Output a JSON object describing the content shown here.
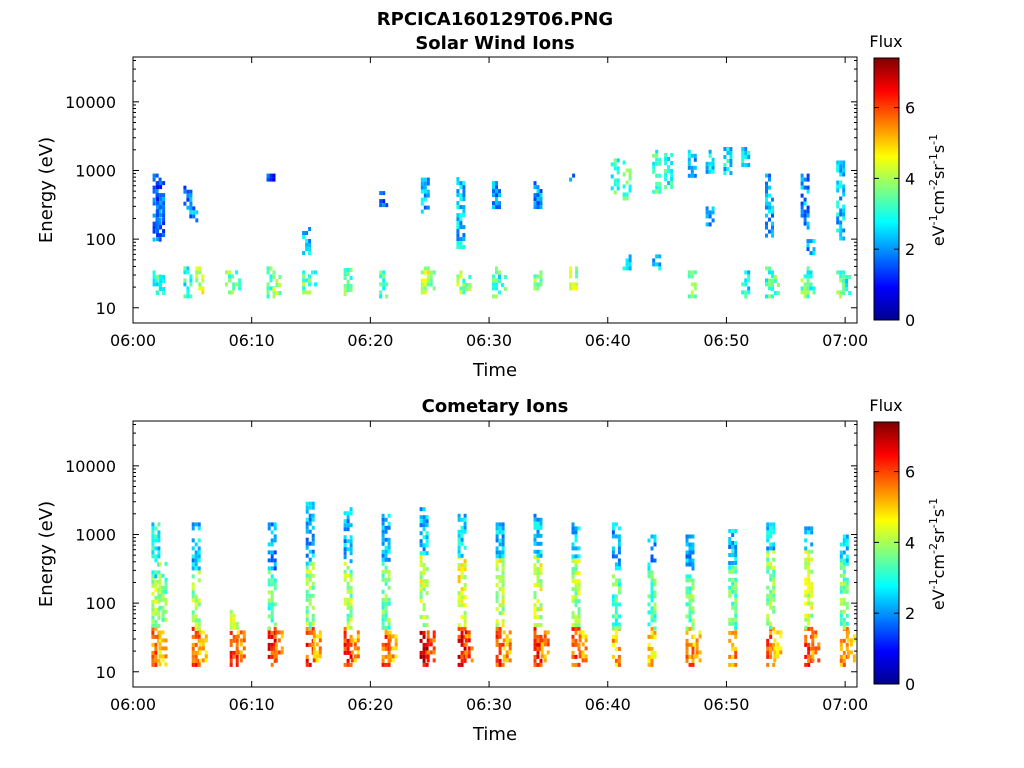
{
  "figure": {
    "title": "RPCICA160129T06.PNG"
  },
  "colorbar": {
    "label": "Flux",
    "unit_parts": [
      "eV",
      "-1",
      "cm",
      "-2",
      "sr",
      "-1",
      "s",
      "-1"
    ],
    "ticks": [
      "0",
      "2",
      "4",
      "6"
    ],
    "range": [
      0,
      7.4
    ],
    "colormap": "jet"
  },
  "chart_data": [
    {
      "type": "heatmap",
      "title": "Solar Wind Ions",
      "xlabel": "Time",
      "ylabel": "Energy (eV)",
      "x_ticks": [
        "06:00",
        "06:10",
        "06:20",
        "06:30",
        "06:40",
        "06:50",
        "07:00"
      ],
      "y_ticks": [
        "10",
        "100",
        "1000",
        "10000"
      ],
      "x_range_minutes": [
        0,
        61
      ],
      "y_scale": "log",
      "y_range": [
        6,
        45000
      ],
      "columns": [
        {
          "t": 1.9,
          "bands": [
            [
              16,
              35,
              2.9
            ],
            [
              90,
              900,
              1.8
            ]
          ]
        },
        {
          "t": 2.2,
          "bands": [
            [
              16,
              30,
              3.2
            ],
            [
              100,
              700,
              1.6
            ]
          ]
        },
        {
          "t": 4.5,
          "bands": [
            [
              14,
              40,
              3.0
            ],
            [
              300,
              600,
              1.8
            ]
          ]
        },
        {
          "t": 5.0,
          "bands": [
            [
              200,
              300,
              2.0
            ]
          ]
        },
        {
          "t": 5.5,
          "bands": [
            [
              16,
              40,
              4.2
            ]
          ]
        },
        {
          "t": 8.0,
          "bands": [
            [
              16,
              35,
              3.6
            ]
          ]
        },
        {
          "t": 8.6,
          "bands": [
            [
              18,
              35,
              3.4
            ]
          ]
        },
        {
          "t": 11.5,
          "bands": [
            [
              14,
              40,
              3.4
            ],
            [
              700,
              900,
              1.4
            ]
          ]
        },
        {
          "t": 12.0,
          "bands": [
            [
              16,
              30,
              4.0
            ]
          ]
        },
        {
          "t": 14.5,
          "bands": [
            [
              16,
              40,
              3.6
            ],
            [
              60,
              150,
              2.2
            ]
          ]
        },
        {
          "t": 15.0,
          "bands": [
            [
              18,
              35,
              3.2
            ]
          ]
        },
        {
          "t": 18.0,
          "bands": [
            [
              16,
              38,
              3.4
            ]
          ]
        },
        {
          "t": 21.0,
          "bands": [
            [
              14,
              35,
              3.2
            ],
            [
              300,
              500,
              1.8
            ]
          ]
        },
        {
          "t": 24.5,
          "bands": [
            [
              16,
              40,
              4.3
            ],
            [
              250,
              900,
              2.2
            ]
          ]
        },
        {
          "t": 25.0,
          "bands": [
            [
              18,
              35,
              3.8
            ]
          ]
        },
        {
          "t": 27.5,
          "bands": [
            [
              16,
              35,
              3.8
            ],
            [
              80,
              800,
              2.4
            ]
          ]
        },
        {
          "t": 28.0,
          "bands": [
            [
              18,
              30,
              3.5
            ]
          ]
        },
        {
          "t": 30.5,
          "bands": [
            [
              14,
              40,
              3.4
            ],
            [
              300,
              700,
              2.0
            ]
          ]
        },
        {
          "t": 31.0,
          "bands": [
            [
              16,
              30,
              3.1
            ]
          ]
        },
        {
          "t": 34.0,
          "bands": [
            [
              16,
              40,
              3.6
            ],
            [
              300,
              700,
              2.0
            ]
          ]
        },
        {
          "t": 37.0,
          "bands": [
            [
              18,
              40,
              4.0
            ],
            [
              700,
              900,
              1.8
            ]
          ]
        },
        {
          "t": 40.5,
          "bands": [
            [
              500,
              1500,
              3.2
            ]
          ]
        },
        {
          "t": 41.5,
          "bands": [
            [
              400,
              1400,
              3.4
            ],
            [
              40,
              60,
              2.4
            ]
          ]
        },
        {
          "t": 44.0,
          "bands": [
            [
              500,
              2000,
              3.3
            ],
            [
              40,
              60,
              2.4
            ]
          ]
        },
        {
          "t": 45.0,
          "bands": [
            [
              600,
              1800,
              2.9
            ]
          ]
        },
        {
          "t": 47.0,
          "bands": [
            [
              15,
              35,
              3.8
            ],
            [
              800,
              2000,
              2.4
            ]
          ]
        },
        {
          "t": 48.5,
          "bands": [
            [
              900,
              2000,
              2.5
            ],
            [
              160,
              300,
              2.0
            ]
          ]
        },
        {
          "t": 50.0,
          "bands": [
            [
              900,
              2200,
              2.6
            ]
          ]
        },
        {
          "t": 51.5,
          "bands": [
            [
              15,
              35,
              2.8
            ],
            [
              1200,
              2200,
              2.6
            ]
          ]
        },
        {
          "t": 53.5,
          "bands": [
            [
              14,
              40,
              3.1
            ],
            [
              120,
              900,
              2.2
            ]
          ]
        },
        {
          "t": 54.0,
          "bands": [
            [
              16,
              30,
              3.3
            ]
          ]
        },
        {
          "t": 56.5,
          "bands": [
            [
              14,
              40,
              3.6
            ],
            [
              150,
              900,
              2.0
            ]
          ]
        },
        {
          "t": 57.0,
          "bands": [
            [
              16,
              35,
              3.2
            ],
            [
              60,
              100,
              2.2
            ]
          ]
        },
        {
          "t": 59.5,
          "bands": [
            [
              14,
              35,
              3.4
            ],
            [
              100,
              1400,
              2.4
            ]
          ]
        },
        {
          "t": 60.0,
          "bands": [
            [
              16,
              30,
              3.0
            ]
          ]
        }
      ]
    },
    {
      "type": "heatmap",
      "title": "Cometary Ions",
      "xlabel": "Time",
      "ylabel": "Energy (eV)",
      "x_ticks": [
        "06:00",
        "06:10",
        "06:20",
        "06:30",
        "06:40",
        "06:50",
        "07:00"
      ],
      "y_ticks": [
        "10",
        "100",
        "1000",
        "10000"
      ],
      "x_range_minutes": [
        0,
        61
      ],
      "y_scale": "log",
      "y_range": [
        6,
        45000
      ],
      "columns": [
        {
          "t": 1.8,
          "bands": [
            [
              12,
              45,
              5.6
            ],
            [
              45,
              250,
              4.0
            ],
            [
              250,
              1500,
              2.8
            ]
          ]
        },
        {
          "t": 2.4,
          "bands": [
            [
              12,
              40,
              5.0
            ],
            [
              60,
              400,
              3.6
            ]
          ]
        },
        {
          "t": 5.2,
          "bands": [
            [
              12,
              45,
              5.8
            ],
            [
              45,
              300,
              3.8
            ],
            [
              300,
              1500,
              2.4
            ]
          ]
        },
        {
          "t": 5.8,
          "bands": [
            [
              14,
              40,
              5.2
            ]
          ]
        },
        {
          "t": 8.4,
          "bands": [
            [
              12,
              45,
              6.0
            ],
            [
              45,
              80,
              4.2
            ]
          ]
        },
        {
          "t": 9.0,
          "bands": [
            [
              14,
              40,
              5.4
            ]
          ]
        },
        {
          "t": 11.6,
          "bands": [
            [
              12,
              45,
              6.2
            ],
            [
              45,
              300,
              3.4
            ],
            [
              300,
              1500,
              2.0
            ]
          ]
        },
        {
          "t": 12.2,
          "bands": [
            [
              14,
              40,
              5.6
            ]
          ]
        },
        {
          "t": 14.8,
          "bands": [
            [
              12,
              45,
              6.0
            ],
            [
              45,
              400,
              3.8
            ],
            [
              400,
              3000,
              2.2
            ]
          ]
        },
        {
          "t": 15.4,
          "bands": [
            [
              14,
              40,
              5.4
            ]
          ]
        },
        {
          "t": 18.0,
          "bands": [
            [
              12,
              45,
              6.0
            ],
            [
              45,
              400,
              3.8
            ],
            [
              400,
              2500,
              2.2
            ]
          ]
        },
        {
          "t": 18.6,
          "bands": [
            [
              14,
              40,
              5.4
            ]
          ]
        },
        {
          "t": 21.2,
          "bands": [
            [
              12,
              45,
              5.8
            ],
            [
              45,
              400,
              3.6
            ],
            [
              400,
              2000,
              2.2
            ]
          ]
        },
        {
          "t": 21.8,
          "bands": [
            [
              14,
              40,
              5.2
            ]
          ]
        },
        {
          "t": 24.4,
          "bands": [
            [
              12,
              45,
              6.6
            ],
            [
              45,
              500,
              4.2
            ],
            [
              500,
              2500,
              2.4
            ]
          ]
        },
        {
          "t": 25.0,
          "bands": [
            [
              14,
              40,
              6.0
            ]
          ]
        },
        {
          "t": 27.6,
          "bands": [
            [
              12,
              45,
              6.4
            ],
            [
              45,
              500,
              4.4
            ],
            [
              500,
              2000,
              2.6
            ]
          ]
        },
        {
          "t": 28.2,
          "bands": [
            [
              14,
              40,
              5.8
            ]
          ]
        },
        {
          "t": 30.8,
          "bands": [
            [
              12,
              45,
              6.0
            ],
            [
              45,
              500,
              4.2
            ],
            [
              500,
              1500,
              2.4
            ]
          ]
        },
        {
          "t": 31.4,
          "bands": [
            [
              14,
              40,
              5.4
            ]
          ]
        },
        {
          "t": 34.0,
          "bands": [
            [
              12,
              45,
              6.2
            ],
            [
              45,
              500,
              4.2
            ],
            [
              500,
              2000,
              2.4
            ]
          ]
        },
        {
          "t": 34.6,
          "bands": [
            [
              14,
              40,
              5.6
            ]
          ]
        },
        {
          "t": 37.2,
          "bands": [
            [
              12,
              45,
              5.8
            ],
            [
              45,
              500,
              4.0
            ],
            [
              500,
              1500,
              2.4
            ]
          ]
        },
        {
          "t": 37.8,
          "bands": [
            [
              14,
              40,
              5.2
            ]
          ]
        },
        {
          "t": 40.6,
          "bands": [
            [
              12,
              45,
              5.2
            ],
            [
              45,
              300,
              3.4
            ],
            [
              300,
              1500,
              2.2
            ]
          ]
        },
        {
          "t": 43.6,
          "bands": [
            [
              12,
              45,
              5.0
            ],
            [
              45,
              300,
              3.4
            ],
            [
              300,
              1000,
              2.2
            ]
          ]
        },
        {
          "t": 46.8,
          "bands": [
            [
              12,
              45,
              5.6
            ],
            [
              45,
              300,
              3.6
            ],
            [
              300,
              1000,
              2.2
            ]
          ]
        },
        {
          "t": 47.4,
          "bands": [
            [
              14,
              40,
              5.0
            ]
          ]
        },
        {
          "t": 50.4,
          "bands": [
            [
              12,
              45,
              5.4
            ],
            [
              45,
              400,
              3.4
            ],
            [
              400,
              1200,
              2.4
            ]
          ]
        },
        {
          "t": 53.6,
          "bands": [
            [
              12,
              45,
              5.8
            ],
            [
              45,
              600,
              3.8
            ],
            [
              600,
              1500,
              2.4
            ]
          ]
        },
        {
          "t": 54.2,
          "bands": [
            [
              14,
              40,
              5.2
            ]
          ]
        },
        {
          "t": 56.8,
          "bands": [
            [
              12,
              45,
              6.0
            ],
            [
              45,
              600,
              4.2
            ],
            [
              600,
              1500,
              2.6
            ]
          ]
        },
        {
          "t": 57.4,
          "bands": [
            [
              14,
              40,
              5.4
            ]
          ]
        },
        {
          "t": 59.8,
          "bands": [
            [
              12,
              45,
              5.4
            ],
            [
              45,
              400,
              3.6
            ],
            [
              400,
              1000,
              2.6
            ]
          ]
        },
        {
          "t": 60.4,
          "bands": [
            [
              14,
              40,
              5.0
            ]
          ]
        }
      ]
    }
  ]
}
